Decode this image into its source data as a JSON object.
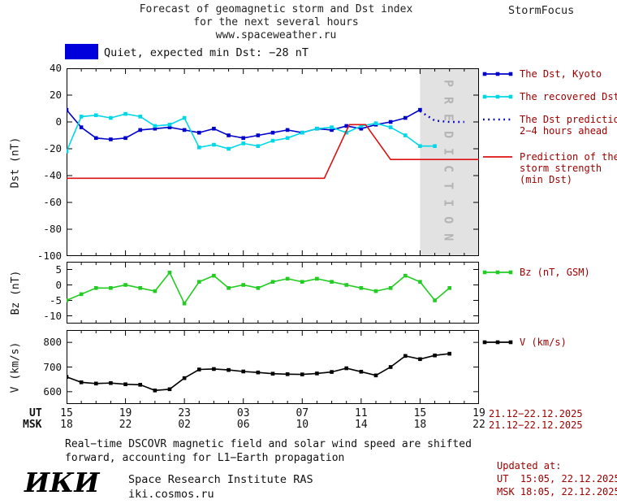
{
  "header": {
    "title_line1": "Forecast of geomagnetic storm and Dst index",
    "title_line2": "for the next several hours",
    "title_line3": "www.spaceweather.ru",
    "brand": "StormFocus"
  },
  "status_banner": {
    "swatch_color": "#0000dd",
    "text": "Quiet, expected min Dst: −28 nT"
  },
  "xaxis": {
    "ut_label": "UT",
    "msk_label": "MSK",
    "tick_hours": [
      0,
      4,
      8,
      12,
      16,
      20,
      24,
      28
    ],
    "ut_ticks": [
      "15",
      "19",
      "23",
      "03",
      "07",
      "11",
      "15",
      "19"
    ],
    "msk_ticks": [
      "18",
      "22",
      "02",
      "06",
      "10",
      "14",
      "18",
      "22"
    ],
    "ut_daterange": "21.12−22.12.2025",
    "msk_daterange": "21.12−22.12.2025"
  },
  "prediction_band": {
    "label": "PREDICTION",
    "start_hour": 24,
    "end_hour": 28,
    "fill": "#e2e2e2",
    "text_color": "#b4b4b4"
  },
  "chart_data": [
    {
      "type": "line",
      "ylabel": "Dst (nT)",
      "ylim": [
        -100,
        40
      ],
      "yticks": [
        40,
        20,
        0,
        -20,
        -40,
        -60,
        -80,
        -100
      ],
      "xlim": [
        0,
        28
      ],
      "x_unit": "hours, axis labeled in UT/MSK clock time",
      "series": [
        {
          "name": "The Dst, Kyoto",
          "color": "#0000cd",
          "marker": "square",
          "x": [
            0,
            1,
            2,
            3,
            4,
            5,
            6,
            7,
            8,
            9,
            10,
            11,
            12,
            13,
            14,
            15,
            16,
            17,
            18,
            19,
            20,
            21,
            22,
            23,
            24
          ],
          "y": [
            9,
            -4,
            -12,
            -13,
            -12,
            -6,
            -5,
            -4,
            -6,
            -8,
            -5,
            -10,
            -12,
            -10,
            -8,
            -6,
            -8,
            -5,
            -6,
            -3,
            -5,
            -2,
            0,
            3,
            9
          ]
        },
        {
          "name": "The recovered Dst",
          "color": "#00d8e8",
          "marker": "square",
          "x": [
            0,
            1,
            2,
            3,
            4,
            5,
            6,
            7,
            8,
            9,
            10,
            11,
            12,
            13,
            14,
            15,
            16,
            17,
            18,
            19,
            20,
            21,
            22,
            23,
            24,
            25
          ],
          "y": [
            -22,
            4,
            5,
            3,
            6,
            4,
            -3,
            -2,
            3,
            -19,
            -17,
            -20,
            -16,
            -18,
            -14,
            -12,
            -8,
            -5,
            -4,
            -8,
            -3,
            -1,
            -4,
            -10,
            -18,
            -18
          ]
        },
        {
          "name": "The Dst prediction 2−4 hours ahead",
          "color": "#0000cd",
          "line_style": "dotted",
          "x": [
            24,
            25,
            26,
            27
          ],
          "y": [
            8,
            1,
            0,
            0
          ]
        },
        {
          "name": "Prediction of the storm strength (min Dst)",
          "color": "#dd1111",
          "x": [
            0,
            17.5,
            19.2,
            20.3,
            22,
            28
          ],
          "y": [
            -42,
            -42,
            -2,
            -2,
            -28,
            -28
          ]
        }
      ]
    },
    {
      "type": "line",
      "ylabel": "Bz (nT)",
      "ylim": [
        -12.5,
        7.5
      ],
      "yticks": [
        5,
        0,
        -5,
        -10
      ],
      "xlim": [
        0,
        28
      ],
      "series": [
        {
          "name": "Bz (nT, GSM)",
          "color": "#22cc22",
          "marker": "square",
          "x": [
            0,
            1,
            2,
            3,
            4,
            5,
            6,
            7,
            8,
            9,
            10,
            11,
            12,
            13,
            14,
            15,
            16,
            17,
            18,
            19,
            20,
            21,
            22,
            23,
            24,
            25,
            26
          ],
          "y": [
            -5,
            -3,
            -1,
            -1,
            0,
            -1,
            -2,
            4,
            -6,
            1,
            3,
            -1,
            0,
            -1,
            1,
            2,
            1,
            2,
            1,
            0,
            -1,
            -2,
            -1,
            3,
            1,
            -5,
            -1
          ]
        }
      ]
    },
    {
      "type": "line",
      "ylabel": "V (km/s)",
      "ylim": [
        550,
        850
      ],
      "yticks": [
        800,
        700,
        600
      ],
      "xlim": [
        0,
        28
      ],
      "series": [
        {
          "name": "V (km/s)",
          "color": "#000000",
          "marker": "square",
          "x": [
            0,
            1,
            2,
            3,
            4,
            5,
            6,
            7,
            8,
            9,
            10,
            11,
            12,
            13,
            14,
            15,
            16,
            17,
            18,
            19,
            20,
            21,
            22,
            23,
            24,
            25,
            26
          ],
          "y": [
            660,
            638,
            633,
            635,
            630,
            628,
            605,
            610,
            655,
            690,
            692,
            688,
            682,
            678,
            673,
            671,
            670,
            674,
            680,
            695,
            681,
            666,
            700,
            745,
            732,
            747,
            754
          ]
        }
      ]
    }
  ],
  "legend": {
    "text_color": "#a00000",
    "entries": [
      {
        "lines": [
          "The Dst, Kyoto"
        ],
        "color": "#0000cd",
        "marker": "square"
      },
      {
        "lines": [
          "The recovered Dst"
        ],
        "color": "#00d8e8",
        "marker": "square"
      },
      {
        "lines": [
          "The Dst prediction",
          "2−4 hours ahead"
        ],
        "color": "#0000cd",
        "line_style": "dotted"
      },
      {
        "lines": [
          "Prediction of the",
          "storm strength",
          "(min Dst)"
        ],
        "color": "#dd1111"
      },
      {
        "lines": [
          "Bz (nT, GSM)"
        ],
        "color": "#22cc22",
        "marker": "square"
      },
      {
        "lines": [
          "V (km/s)"
        ],
        "color": "#000000",
        "marker": "square"
      }
    ]
  },
  "footer": {
    "note_line1": "Real−time DSCOVR magnetic field and solar wind speed are shifted",
    "note_line2": "forward, accounting for L1−Earth propagation",
    "updated_label": "Updated at:",
    "updated_ut": "UT  15:05, 22.12.2025",
    "updated_msk": "MSK 18:05, 22.12.2025",
    "logo_text": "ИКИ",
    "institute": "Space Research Institute RAS",
    "site": "iki.cosmos.ru"
  }
}
